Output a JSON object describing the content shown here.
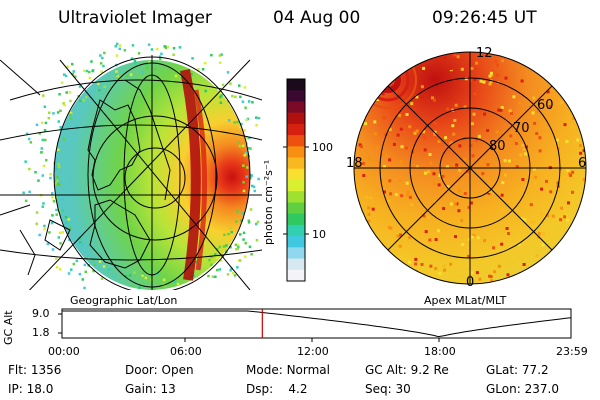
{
  "header": {
    "instrument": "Ultraviolet Imager",
    "date": "04 Aug 00",
    "time": "09:26:45 UT"
  },
  "left_panel": {
    "caption": "Geographic Lat/Lon"
  },
  "right_panel": {
    "caption": "Apex MLat/MLT",
    "mlt_labels": [
      "12",
      "18",
      "6",
      "0"
    ],
    "lat_labels": [
      "60",
      "70",
      "80"
    ]
  },
  "colorbar": {
    "unit_label": "photon cm⁻²s⁻¹",
    "tick_labels": [
      "100",
      "10"
    ],
    "colors": [
      "#1a0a1a",
      "#3a0830",
      "#7a0a28",
      "#b01010",
      "#d82010",
      "#ee5010",
      "#f79010",
      "#fab820",
      "#f8e030",
      "#d8f030",
      "#a0e030",
      "#60d040",
      "#30c860",
      "#30d0b0",
      "#40c8e0",
      "#90d8f0",
      "#d8e8f0",
      "#f4f4f8"
    ]
  },
  "timeline": {
    "y_axis_label": "GC Alt",
    "y_ticks": [
      "9.0",
      "1.8"
    ],
    "x_ticks": [
      "00:00",
      "06:00",
      "12:00",
      "18:00",
      "23:59"
    ],
    "current_time_hours": 9.4458,
    "cursor_color": "#cc0000"
  },
  "info": {
    "row1": [
      {
        "label": "Flt:",
        "value": "1356"
      },
      {
        "label": "Door:",
        "value": "Open"
      },
      {
        "label": "Mode:",
        "value": "Normal"
      },
      {
        "label": "GC Alt:",
        "value": "9.2 Re"
      },
      {
        "label": "GLat:",
        "value": "77.2"
      }
    ],
    "row2": [
      {
        "label": "IP:",
        "value": "18.0"
      },
      {
        "label": "Gain:",
        "value": "13"
      },
      {
        "label": "Dsp:",
        "value": "4.2"
      },
      {
        "label": "Seq:",
        "value": "30"
      },
      {
        "label": "GLon:",
        "value": "237.0"
      }
    ]
  }
}
